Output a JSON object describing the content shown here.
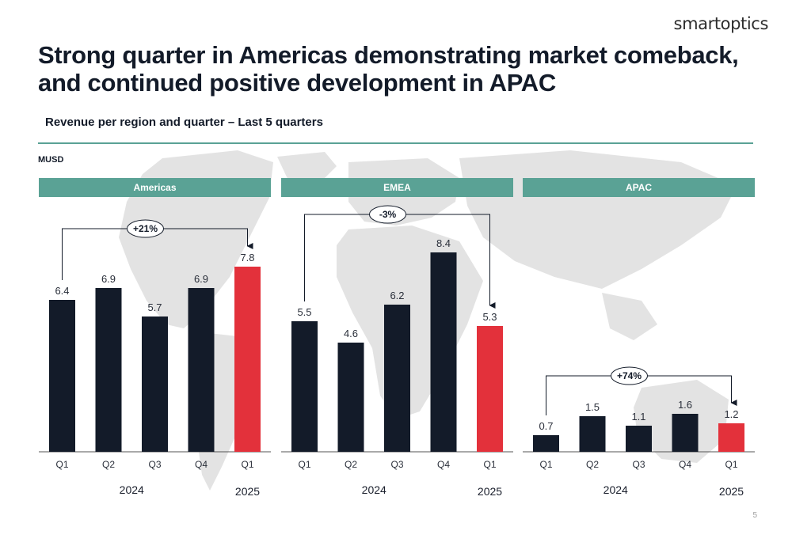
{
  "brand": {
    "logo_text": "smartoptics"
  },
  "title": "Strong quarter in Americas demonstrating market comeback, and continued positive development in APAC",
  "subtitle": "Revenue per region and quarter – Last 5 quarters",
  "unit_label": "MUSD",
  "page_number": "5",
  "colors": {
    "accent": "#5aa295",
    "bar": "#131b29",
    "highlight": "#e3313b"
  },
  "chart_data": [
    {
      "type": "bar",
      "title": "Americas",
      "categories": [
        "Q1",
        "Q2",
        "Q3",
        "Q4",
        "Q1"
      ],
      "year_labels": [
        "2024",
        "2025"
      ],
      "values": [
        6.4,
        6.9,
        5.7,
        6.9,
        7.8
      ],
      "ylabel": "MUSD",
      "ylim": [
        0,
        10
      ],
      "highlight_index": 4,
      "change_annotation": {
        "text": "+21%",
        "from_index": 0,
        "to_index": 4
      }
    },
    {
      "type": "bar",
      "title": "EMEA",
      "categories": [
        "Q1",
        "Q2",
        "Q3",
        "Q4",
        "Q1"
      ],
      "year_labels": [
        "2024",
        "2025"
      ],
      "values": [
        5.5,
        4.6,
        6.2,
        8.4,
        5.3
      ],
      "ylabel": "MUSD",
      "ylim": [
        0,
        10
      ],
      "highlight_index": 4,
      "change_annotation": {
        "text": "-3%",
        "from_index": 0,
        "to_index": 4
      }
    },
    {
      "type": "bar",
      "title": "APAC",
      "categories": [
        "Q1",
        "Q2",
        "Q3",
        "Q4",
        "Q1"
      ],
      "year_labels": [
        "2024",
        "2025"
      ],
      "values": [
        0.7,
        1.5,
        1.1,
        1.6,
        1.2
      ],
      "ylabel": "MUSD",
      "ylim": [
        0,
        10
      ],
      "highlight_index": 4,
      "change_annotation": {
        "text": "+74%",
        "from_index": 0,
        "to_index": 4
      }
    }
  ]
}
